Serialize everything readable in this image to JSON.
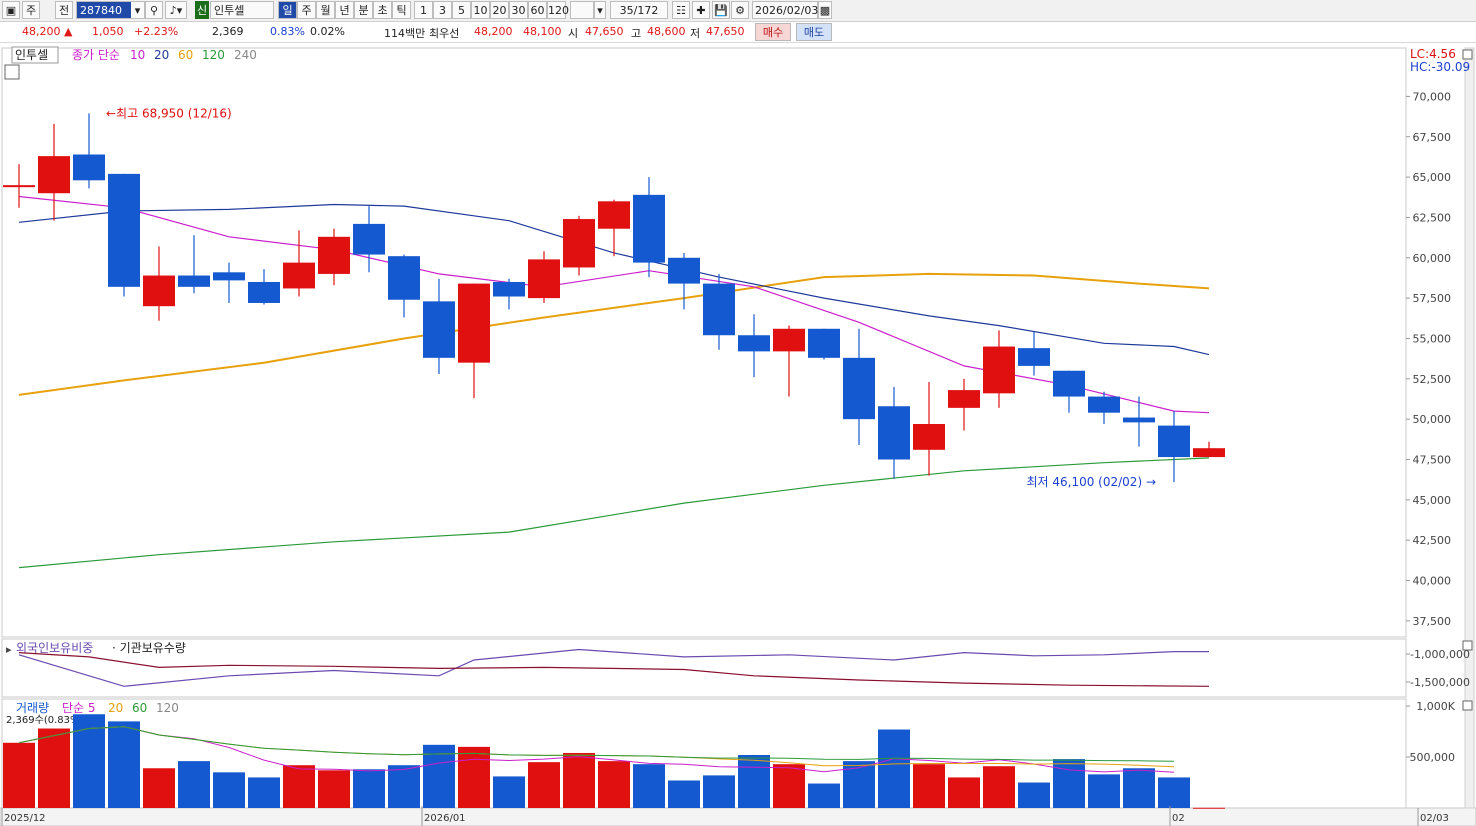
{
  "toolbar": {
    "period_label": "주",
    "mode_label": "전",
    "search_value": "287840",
    "market_badge": "신",
    "stock_name": "인투셀",
    "periods": [
      "일",
      "주",
      "월",
      "년",
      "분",
      "초",
      "틱"
    ],
    "intervals": [
      "1",
      "3",
      "5",
      "10",
      "20",
      "30",
      "60",
      "120"
    ],
    "page": "35/172",
    "date": "2026/02/03"
  },
  "status": {
    "price": "48,200",
    "change_arrow": "▲",
    "change": "1,050",
    "change_pct": "+2.23%",
    "volume": "2,369",
    "vol_ratio": "0.83%",
    "turnover": "0.02%",
    "amount": "114백만",
    "best_ask_label": "최우선",
    "best_ask": "48,200",
    "best_bid": "48,100",
    "open_label": "시",
    "open": "47,650",
    "high_label": "고",
    "high": "48,600",
    "low_label": "저",
    "low": "47,650",
    "buy_label": "매수",
    "sell_label": "매도"
  },
  "chart": {
    "stock_tag": "인투셀",
    "ma_legend": {
      "prefix": "종가 단순",
      "periods": [
        "10",
        "20",
        "60",
        "120",
        "240"
      ],
      "colors": [
        "#cc1fcc",
        "#1f3a9a",
        "#e8a10c",
        "#2a9a3a",
        "#888888"
      ]
    },
    "lc_label": "LC:4.56",
    "hc_label": "HC:-30.09",
    "high_annotation": "최고 68,950 (12/16)",
    "low_annotation": "최저 46,100 (02/02)",
    "up_color": "#e01010",
    "down_color": "#1559d0"
  },
  "investor_panel": {
    "legend_foreign": "외국인보유비중",
    "legend_inst": "기관보유수량",
    "axis_labels": [
      "-1,000,000",
      "-1,500,000"
    ]
  },
  "volume_panel": {
    "legend_prefix": "거래량",
    "legend_ma": "단순 5",
    "legend_periods": [
      "20",
      "60",
      "120"
    ],
    "current_label": "2,369수(0.83%)",
    "axis_labels": [
      "1,000K",
      "500,000"
    ]
  },
  "time_axis": [
    "2025/12",
    "2026/01",
    "02",
    "02/03"
  ],
  "chart_data": {
    "type": "candlestick",
    "ylim": [
      36500,
      73000
    ],
    "y_ticks": [
      70000,
      67500,
      65000,
      62500,
      60000,
      57500,
      55000,
      52500,
      50000,
      47500,
      45000,
      42500,
      40000,
      37500
    ],
    "candles": [
      {
        "o": 64500,
        "h": 65800,
        "l": 63100,
        "c": 64500
      },
      {
        "o": 64000,
        "h": 68300,
        "l": 62300,
        "c": 66300
      },
      {
        "o": 66400,
        "h": 68950,
        "l": 64300,
        "c": 64800
      },
      {
        "o": 65200,
        "h": 65200,
        "l": 57600,
        "c": 58200
      },
      {
        "o": 57000,
        "h": 60700,
        "l": 56100,
        "c": 58900
      },
      {
        "o": 58900,
        "h": 61400,
        "l": 57800,
        "c": 58200
      },
      {
        "o": 59100,
        "h": 59700,
        "l": 57200,
        "c": 58600
      },
      {
        "o": 58500,
        "h": 59300,
        "l": 57100,
        "c": 57200
      },
      {
        "o": 58100,
        "h": 61700,
        "l": 57600,
        "c": 59700
      },
      {
        "o": 59000,
        "h": 61800,
        "l": 58300,
        "c": 61300
      },
      {
        "o": 62100,
        "h": 63200,
        "l": 59100,
        "c": 60200
      },
      {
        "o": 60100,
        "h": 60200,
        "l": 56300,
        "c": 57400
      },
      {
        "o": 57300,
        "h": 58700,
        "l": 52800,
        "c": 53800
      },
      {
        "o": 53500,
        "h": 58400,
        "l": 51300,
        "c": 58400
      },
      {
        "o": 58500,
        "h": 58700,
        "l": 56800,
        "c": 57600
      },
      {
        "o": 57500,
        "h": 60400,
        "l": 57200,
        "c": 59900
      },
      {
        "o": 59400,
        "h": 62600,
        "l": 58900,
        "c": 62400
      },
      {
        "o": 61800,
        "h": 63600,
        "l": 60100,
        "c": 63500
      },
      {
        "o": 63900,
        "h": 65000,
        "l": 58800,
        "c": 59700
      },
      {
        "o": 60000,
        "h": 60300,
        "l": 56800,
        "c": 58400
      },
      {
        "o": 58400,
        "h": 59000,
        "l": 54300,
        "c": 55200
      },
      {
        "o": 55200,
        "h": 56500,
        "l": 52600,
        "c": 54200
      },
      {
        "o": 54200,
        "h": 55800,
        "l": 51400,
        "c": 55600
      },
      {
        "o": 55600,
        "h": 55600,
        "l": 53700,
        "c": 53800
      },
      {
        "o": 53800,
        "h": 55600,
        "l": 48400,
        "c": 50000
      },
      {
        "o": 50800,
        "h": 52000,
        "l": 46300,
        "c": 47500
      },
      {
        "o": 48100,
        "h": 52300,
        "l": 46500,
        "c": 49700
      },
      {
        "o": 50700,
        "h": 52500,
        "l": 49300,
        "c": 51800
      },
      {
        "o": 51600,
        "h": 55500,
        "l": 50700,
        "c": 54500
      },
      {
        "o": 54400,
        "h": 55400,
        "l": 52700,
        "c": 53300
      },
      {
        "o": 53000,
        "h": 53000,
        "l": 50400,
        "c": 51400
      },
      {
        "o": 51400,
        "h": 51700,
        "l": 49700,
        "c": 50400
      },
      {
        "o": 50100,
        "h": 51400,
        "l": 48300,
        "c": 49800
      },
      {
        "o": 49600,
        "h": 50500,
        "l": 46100,
        "c": 47650
      },
      {
        "o": 47650,
        "h": 48600,
        "l": 47650,
        "c": 48200
      }
    ],
    "ma10": [
      [
        0,
        63800
      ],
      [
        3,
        63100
      ],
      [
        6,
        61300
      ],
      [
        9,
        60500
      ],
      [
        12,
        59000
      ],
      [
        15,
        58200
      ],
      [
        18,
        59200
      ],
      [
        21,
        58200
      ],
      [
        24,
        56000
      ],
      [
        27,
        53300
      ],
      [
        30,
        52100
      ],
      [
        33,
        50500
      ],
      [
        34,
        50400
      ]
    ],
    "ma20": [
      [
        0,
        62200
      ],
      [
        3,
        62900
      ],
      [
        6,
        63000
      ],
      [
        9,
        63300
      ],
      [
        11,
        63200
      ],
      [
        14,
        62300
      ],
      [
        17,
        60300
      ],
      [
        20,
        58800
      ],
      [
        23,
        57500
      ],
      [
        26,
        56400
      ],
      [
        28,
        55800
      ],
      [
        31,
        54700
      ],
      [
        33,
        54500
      ],
      [
        34,
        54000
      ]
    ],
    "ma60": [
      [
        0,
        51500
      ],
      [
        3,
        52400
      ],
      [
        7,
        53500
      ],
      [
        11,
        55000
      ],
      [
        15,
        56300
      ],
      [
        19,
        57500
      ],
      [
        23,
        58800
      ],
      [
        26,
        59000
      ],
      [
        29,
        58900
      ],
      [
        32,
        58400
      ],
      [
        34,
        58100
      ]
    ],
    "ma120": [
      [
        0,
        40800
      ],
      [
        4,
        41600
      ],
      [
        9,
        42400
      ],
      [
        14,
        43000
      ],
      [
        19,
        44800
      ],
      [
        23,
        45900
      ],
      [
        27,
        46800
      ],
      [
        31,
        47300
      ],
      [
        34,
        47600
      ]
    ],
    "volume": [
      640000,
      780000,
      920000,
      850000,
      390000,
      460000,
      350000,
      300000,
      420000,
      370000,
      380000,
      420000,
      620000,
      600000,
      310000,
      450000,
      540000,
      460000,
      430000,
      270000,
      320000,
      520000,
      430000,
      240000,
      460000,
      770000,
      430000,
      300000,
      410000,
      250000,
      480000,
      330000,
      390000,
      300000,
      2369
    ],
    "vol_ylim": [
      0,
      1050000
    ],
    "foreign_ratio": [
      [
        0,
        660
      ],
      [
        3,
        690
      ],
      [
        6,
        680
      ],
      [
        9,
        675
      ],
      [
        12,
        680
      ],
      [
        13,
        665
      ],
      [
        16,
        655
      ],
      [
        19,
        662
      ],
      [
        22,
        660
      ],
      [
        25,
        665
      ],
      [
        27,
        658
      ],
      [
        29,
        661
      ],
      [
        31,
        660
      ],
      [
        33,
        657
      ],
      [
        34,
        657
      ]
    ],
    "inst_holding": [
      [
        0,
        658
      ],
      [
        2,
        662
      ],
      [
        4,
        672
      ],
      [
        6,
        670
      ],
      [
        9,
        671
      ],
      [
        12,
        673
      ],
      [
        15,
        672
      ],
      [
        19,
        674
      ],
      [
        21,
        680
      ],
      [
        24,
        684
      ],
      [
        27,
        687
      ],
      [
        30,
        689
      ],
      [
        34,
        690
      ]
    ]
  }
}
